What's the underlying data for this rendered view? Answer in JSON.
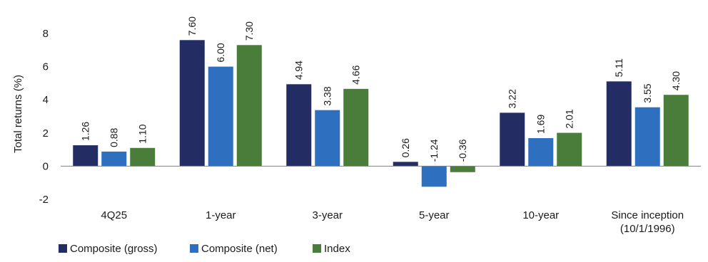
{
  "chart_data": {
    "type": "bar",
    "ylabel": "Total returns (%)",
    "xlabel": "",
    "ylim": [
      -2,
      8
    ],
    "yticks": [
      -2,
      0,
      2,
      4,
      6,
      8
    ],
    "categories": [
      [
        "4Q25"
      ],
      [
        "1-year"
      ],
      [
        "3-year"
      ],
      [
        "5-year"
      ],
      [
        "10-year"
      ],
      [
        "Since inception",
        "(10/1/1996)"
      ]
    ],
    "series": [
      {
        "name": "Composite (gross)",
        "color": "#232d63",
        "values": [
          1.26,
          7.6,
          4.94,
          0.26,
          3.22,
          5.11
        ],
        "labels": [
          "1.26",
          "7.60",
          "4.94",
          "0.26",
          "3.22",
          "5.11"
        ]
      },
      {
        "name": "Composite (net)",
        "color": "#2e6fbf",
        "values": [
          0.88,
          6.0,
          3.38,
          -1.24,
          1.69,
          3.55
        ],
        "labels": [
          "0.88",
          "6.00",
          "3.38",
          "-1.24",
          "1.69",
          "3.55"
        ]
      },
      {
        "name": "Index",
        "color": "#4a7d3a",
        "values": [
          1.1,
          7.3,
          4.66,
          -0.36,
          2.01,
          4.3
        ],
        "labels": [
          "1.10",
          "7.30",
          "4.66",
          "-0.36",
          "2.01",
          "4.30"
        ]
      }
    ],
    "legend": "bottom-left",
    "grid": false
  }
}
